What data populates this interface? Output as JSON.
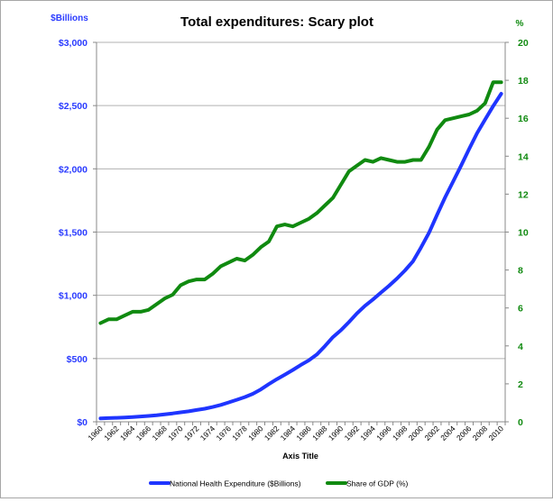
{
  "chart_data": {
    "type": "line",
    "title": "Total expenditures: Scary plot",
    "xlabel": "Axis Title",
    "ylabel_left": "$Billions",
    "ylabel_right": "%",
    "x": [
      1960,
      1961,
      1962,
      1963,
      1964,
      1965,
      1966,
      1967,
      1968,
      1969,
      1970,
      1971,
      1972,
      1973,
      1974,
      1975,
      1976,
      1977,
      1978,
      1979,
      1980,
      1981,
      1982,
      1983,
      1984,
      1985,
      1986,
      1987,
      1988,
      1989,
      1990,
      1991,
      1992,
      1993,
      1994,
      1995,
      1996,
      1997,
      1998,
      1999,
      2000,
      2001,
      2002,
      2003,
      2004,
      2005,
      2006,
      2007,
      2008,
      2009,
      2010
    ],
    "x_tick_labels": [
      "1960",
      "1962",
      "1964",
      "1966",
      "1968",
      "1970",
      "1972",
      "1974",
      "1976",
      "1978",
      "1980",
      "1982",
      "1984",
      "1986",
      "1988",
      "1990",
      "1992",
      "1994",
      "1996",
      "1998",
      "2000",
      "2002",
      "2004",
      "2006",
      "2008",
      "2010"
    ],
    "ylim_left": [
      0,
      3000
    ],
    "yticks_left": [
      "$0",
      "$500",
      "$1,000",
      "$1,500",
      "$2,000",
      "$2,500",
      "$3,000"
    ],
    "ylim_right": [
      0,
      20
    ],
    "yticks_right": [
      "0",
      "2",
      "4",
      "6",
      "8",
      "10",
      "12",
      "14",
      "16",
      "18",
      "20"
    ],
    "grid": true,
    "legend_position": "bottom",
    "series": [
      {
        "name": "National Health Expenditure ($Billions)",
        "axis": "left",
        "color": "#1f35ff",
        "values": [
          27,
          29,
          31,
          34,
          38,
          42,
          46,
          52,
          59,
          66,
          75,
          83,
          93,
          103,
          117,
          133,
          153,
          174,
          195,
          221,
          256,
          298,
          337,
          373,
          410,
          450,
          486,
          532,
          598,
          669,
          724,
          788,
          857,
          917,
          967,
          1022,
          1075,
          1133,
          1197,
          1270,
          1378,
          1495,
          1637,
          1774,
          1900,
          2025,
          2156,
          2283,
          2391,
          2496,
          2594
        ]
      },
      {
        "name": "Share of GDP (%)",
        "axis": "right",
        "color": "#108a10",
        "values": [
          5.2,
          5.4,
          5.4,
          5.6,
          5.8,
          5.8,
          5.9,
          6.2,
          6.5,
          6.7,
          7.2,
          7.4,
          7.5,
          7.5,
          7.8,
          8.2,
          8.4,
          8.6,
          8.5,
          8.8,
          9.2,
          9.5,
          10.3,
          10.4,
          10.3,
          10.5,
          10.7,
          11.0,
          11.4,
          11.8,
          12.5,
          13.2,
          13.5,
          13.8,
          13.7,
          13.9,
          13.8,
          13.7,
          13.7,
          13.8,
          13.8,
          14.5,
          15.4,
          15.9,
          16.0,
          16.1,
          16.2,
          16.4,
          16.8,
          17.9,
          17.9
        ]
      }
    ],
    "colors": {
      "left_axis": "#2a3bff",
      "right_axis": "#108a10",
      "grid": "#b0b0b0"
    }
  }
}
